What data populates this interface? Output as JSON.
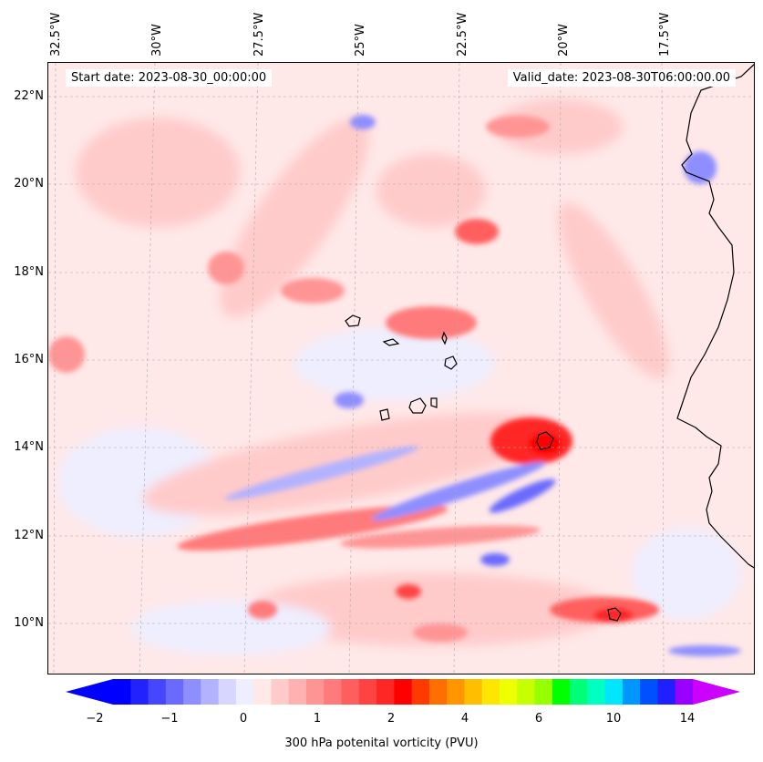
{
  "header": {
    "start_date": "Start date: 2023-08-30_00:00:00",
    "valid_date": "Valid_date: 2023-08-30T06:00:00.00"
  },
  "axes": {
    "lon_labels": [
      "32.5°W",
      "30°W",
      "27.5°W",
      "25°W",
      "22.5°W",
      "20°W",
      "17.5°W"
    ],
    "lat_labels": [
      "22°N",
      "20°N",
      "18°N",
      "16°N",
      "14°N",
      "12°N",
      "10°N"
    ]
  },
  "colorbar": {
    "label": "300 hPa potenital vorticity (PVU)",
    "ticks": [
      "−2",
      "−1",
      "0",
      "1",
      "2",
      "4",
      "6",
      "10",
      "14"
    ],
    "colors": [
      "#0000ff",
      "#2222ff",
      "#4646ff",
      "#6a6aff",
      "#8e8eff",
      "#b2b2ff",
      "#d6d6ff",
      "#eeeeff",
      "#ffe8e8",
      "#ffcaca",
      "#ffb0b0",
      "#ff9494",
      "#ff7a7a",
      "#ff5e5e",
      "#ff4242",
      "#ff2626",
      "#ff0000",
      "#ff3a00",
      "#ff6e00",
      "#ff9600",
      "#ffbe00",
      "#ffe600",
      "#eeff00",
      "#c6ff00",
      "#96ff00",
      "#00ff00",
      "#00ff78",
      "#00ffc0",
      "#00e6ff",
      "#0096ff",
      "#0050ff",
      "#2020ff",
      "#9a00ff"
    ],
    "extend_low_color": "#0000ff",
    "extend_high_color": "#cc00ff"
  }
}
